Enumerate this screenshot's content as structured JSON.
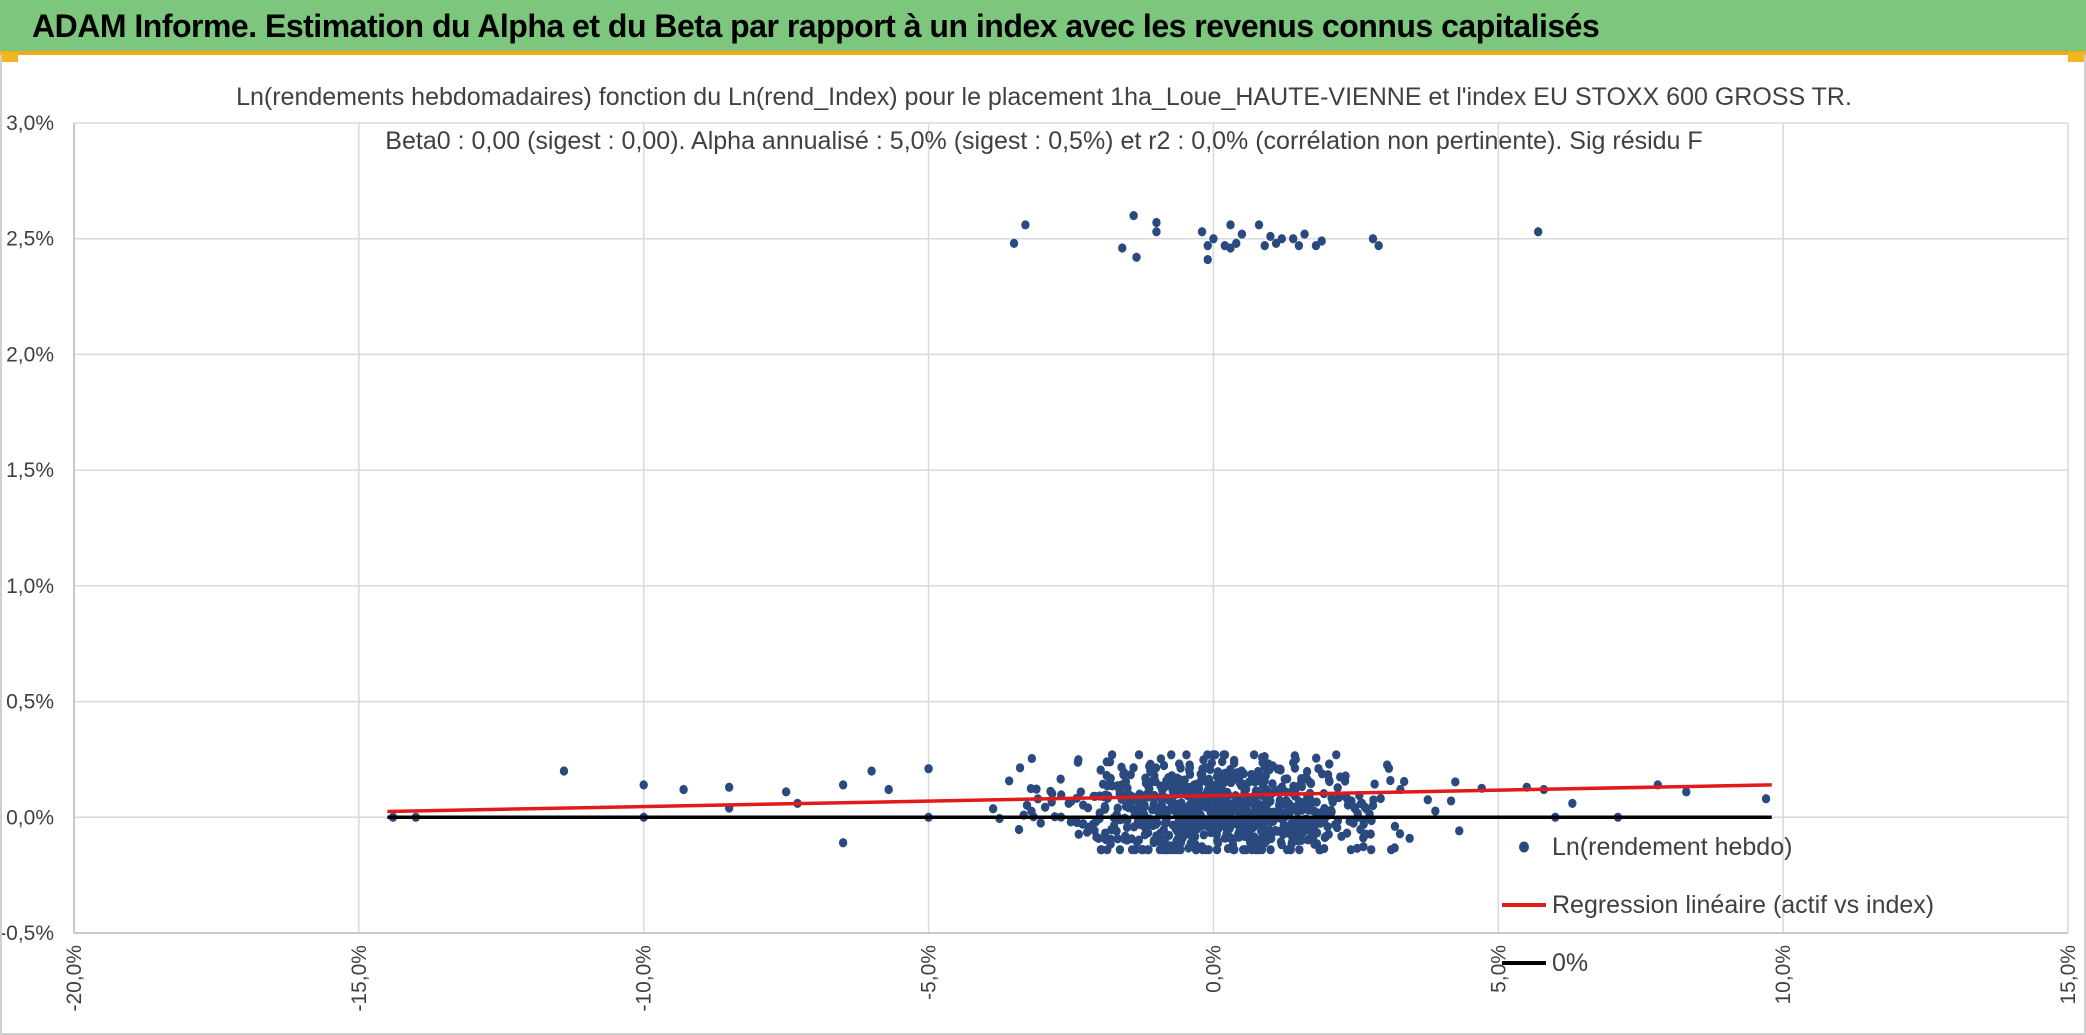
{
  "header": {
    "title": "ADAM Informe. Estimation du Alpha et du Beta par rapport à un index avec les revenus connus capitalisés",
    "bar_color": "#7dc67d",
    "accent_color": "#f2a81d"
  },
  "chart_data": {
    "type": "scatter",
    "title": "Ln(rendements hebdomadaires) fonction du Ln(rend_Index) pour le placement 1ha_Loue_HAUTE-VIENNE et l'index EU STOXX 600 GROSS TR.",
    "subtitle": "Beta0 : 0,00 (sigest : 0,00). Alpha annualisé : 5,0% (sigest : 0,5%) et r2 : 0,0% (corrélation non pertinente). Sig résidu F",
    "xlim": [
      -0.2,
      0.15
    ],
    "ylim": [
      -0.005,
      0.03
    ],
    "x_ticks": [
      "-20,0%",
      "-15,0%",
      "-10,0%",
      "-5,0%",
      "0,0%",
      "5,0%",
      "10,0%",
      "15,0%"
    ],
    "y_ticks": [
      "-0,5%",
      "0,0%",
      "0,5%",
      "1,0%",
      "1,5%",
      "2,0%",
      "2,5%",
      "3,0%"
    ],
    "grid": true,
    "legend_placement": "bottom-right",
    "series": [
      {
        "name": "Ln(rendement hebdo)",
        "kind": "points",
        "color": "#2a4a7f",
        "high_cluster": [
          [
            -0.035,
            0.0248
          ],
          [
            -0.033,
            0.0256
          ],
          [
            -0.016,
            0.0246
          ],
          [
            -0.014,
            0.026
          ],
          [
            -0.0135,
            0.0242
          ],
          [
            -0.01,
            0.0257
          ],
          [
            -0.01,
            0.0253
          ],
          [
            -0.002,
            0.0253
          ],
          [
            -0.001,
            0.0241
          ],
          [
            -0.001,
            0.0247
          ],
          [
            0.0,
            0.025
          ],
          [
            0.002,
            0.0247
          ],
          [
            0.003,
            0.0246
          ],
          [
            0.003,
            0.0256
          ],
          [
            0.004,
            0.0248
          ],
          [
            0.005,
            0.0252
          ],
          [
            0.008,
            0.0256
          ],
          [
            0.009,
            0.0247
          ],
          [
            0.01,
            0.0251
          ],
          [
            0.011,
            0.0248
          ],
          [
            0.012,
            0.025
          ],
          [
            0.014,
            0.025
          ],
          [
            0.015,
            0.0247
          ],
          [
            0.016,
            0.0252
          ],
          [
            0.018,
            0.0247
          ],
          [
            0.019,
            0.0249
          ],
          [
            0.028,
            0.025
          ],
          [
            0.029,
            0.0247
          ],
          [
            0.057,
            0.0253
          ]
        ],
        "low_cluster_mean_y": 0.0004,
        "low_cluster_count": 880,
        "low_cluster_x_sd": 0.014,
        "low_cluster_y_sd": 0.0011,
        "low_outliers": [
          [
            -0.144,
            0.0
          ],
          [
            -0.14,
            0.0
          ],
          [
            -0.114,
            0.002
          ],
          [
            -0.1,
            0.0014
          ],
          [
            -0.1,
            0.0
          ],
          [
            -0.093,
            0.0012
          ],
          [
            -0.085,
            0.0013
          ],
          [
            -0.085,
            0.0004
          ],
          [
            -0.075,
            0.0011
          ],
          [
            -0.073,
            0.0006
          ],
          [
            -0.065,
            0.0014
          ],
          [
            -0.065,
            -0.0011
          ],
          [
            -0.06,
            0.002
          ],
          [
            -0.057,
            0.0012
          ],
          [
            -0.05,
            0.0021
          ],
          [
            -0.05,
            0.0
          ],
          [
            0.055,
            0.0013
          ],
          [
            0.058,
            0.0012
          ],
          [
            0.06,
            0.0
          ],
          [
            0.063,
            0.0006
          ],
          [
            0.071,
            0.0
          ],
          [
            0.078,
            0.0014
          ],
          [
            0.083,
            0.0011
          ],
          [
            0.097,
            0.0008
          ]
        ]
      },
      {
        "name": "Regression linéaire (actif vs index)",
        "kind": "line",
        "color": "#e31a1c",
        "x": [
          -0.145,
          0.098
        ],
        "y": [
          0.00025,
          0.0014
        ]
      },
      {
        "name": "0%",
        "kind": "line",
        "color": "#000000",
        "x": [
          -0.145,
          0.098
        ],
        "y": [
          0.0,
          0.0
        ]
      }
    ]
  }
}
